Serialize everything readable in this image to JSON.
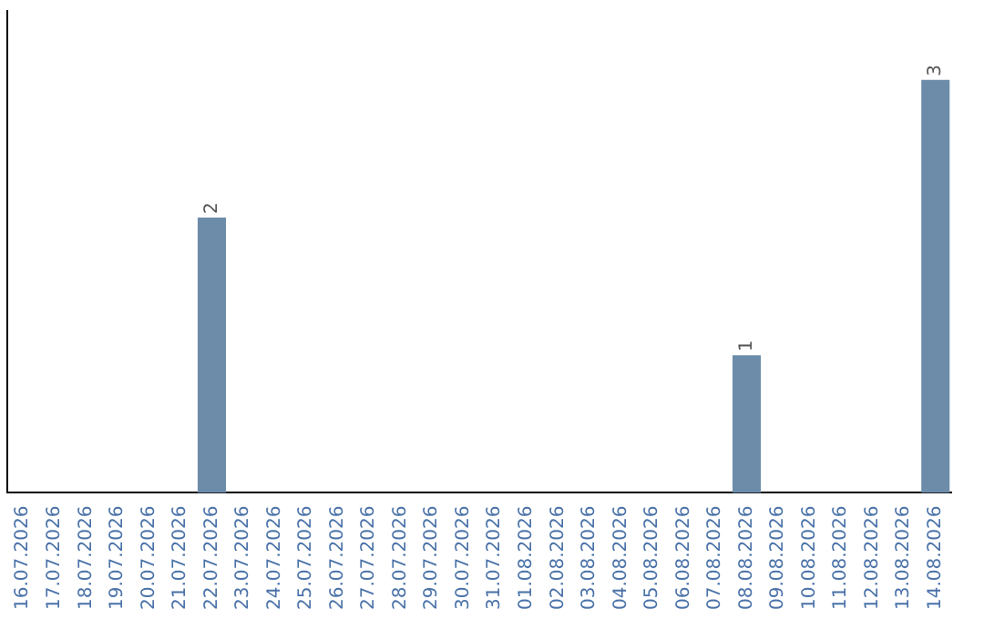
{
  "chart_data": {
    "type": "bar",
    "categories": [
      "16.07.2026",
      "17.07.2026",
      "18.07.2026",
      "19.07.2026",
      "20.07.2026",
      "21.07.2026",
      "22.07.2026",
      "23.07.2026",
      "24.07.2026",
      "25.07.2026",
      "26.07.2026",
      "27.07.2026",
      "28.07.2026",
      "29.07.2026",
      "30.07.2026",
      "31.07.2026",
      "01.08.2026",
      "02.08.2026",
      "03.08.2026",
      "04.08.2026",
      "05.08.2026",
      "06.08.2026",
      "07.08.2026",
      "08.08.2026",
      "09.08.2026",
      "10.08.2026",
      "11.08.2026",
      "12.08.2026",
      "13.08.2026",
      "14.08.2026"
    ],
    "values": [
      0,
      0,
      0,
      0,
      0,
      0,
      2,
      0,
      0,
      0,
      0,
      0,
      0,
      0,
      0,
      0,
      0,
      0,
      0,
      0,
      0,
      0,
      0,
      1,
      0,
      0,
      0,
      0,
      0,
      3
    ],
    "value_labels": [
      null,
      null,
      null,
      null,
      null,
      null,
      "2",
      null,
      null,
      null,
      null,
      null,
      null,
      null,
      null,
      null,
      null,
      null,
      null,
      null,
      null,
      null,
      null,
      "1",
      null,
      null,
      null,
      null,
      null,
      "3"
    ],
    "color": "#6d8caa",
    "grid": false,
    "legend": false,
    "tick_labels": "x"
  }
}
